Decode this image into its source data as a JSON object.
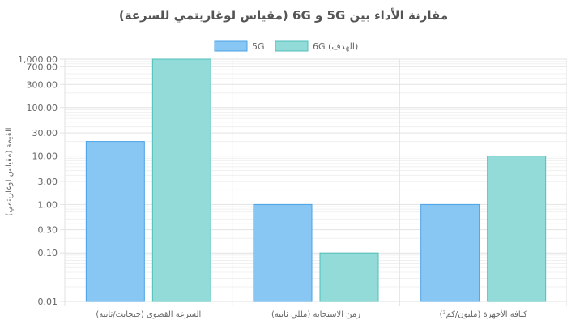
{
  "chart_data": {
    "type": "bar",
    "title": "مقارنة الأداء بين 5G و 6G (مقياس لوغاريتمي للسرعة)",
    "ylabel": "القيمة (مقياس لوغاريتمي)",
    "yscale": "log",
    "ylim": [
      0.01,
      1000
    ],
    "yticks": [
      "1,000.00",
      "700.00",
      "300.00",
      "100.00",
      "30.00",
      "10.00",
      "3.00",
      "1.00",
      "0.30",
      "0.10",
      "0.01"
    ],
    "ytick_values": [
      1000,
      700,
      300,
      100,
      30,
      10,
      3,
      1,
      0.3,
      0.1,
      0.01
    ],
    "categories": [
      "السرعة القصوى (جيجابت/ثانية)",
      "زمن الاستجابة (مللي ثانية)",
      "كثافة الأجهزة (مليون/كم²)"
    ],
    "series": [
      {
        "name": "5G",
        "values": [
          20,
          1,
          1
        ],
        "color": "#88c6f3",
        "border": "#4aa3e6"
      },
      {
        "name": "6G (الهدف)",
        "values": [
          1000,
          0.1,
          10
        ],
        "color": "#93dbd8",
        "border": "#4ebfba"
      }
    ],
    "grid": true,
    "legend_position": "top"
  }
}
